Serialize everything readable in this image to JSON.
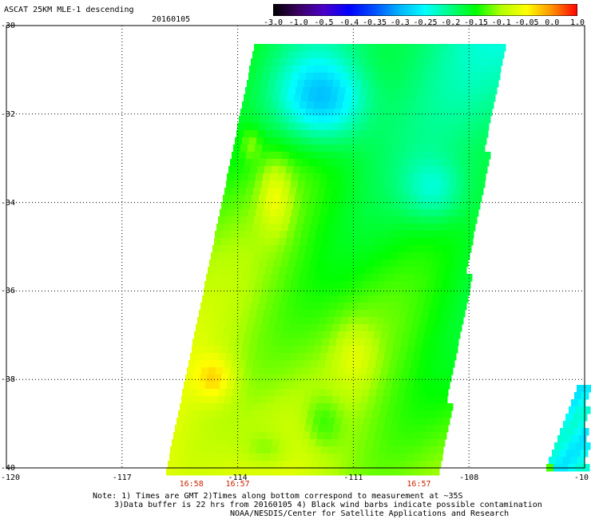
{
  "header": {
    "title": "ASCAT 25KM MLE-1 descending",
    "date": "20160105"
  },
  "colorbar": {
    "labels": [
      "-3.0",
      "-1.0",
      "-0.5",
      "-0.4",
      "-0.35",
      "-0.3",
      "-0.25",
      "-0.2",
      "-0.15",
      "-0.1",
      "-0.05",
      "0.0",
      "1.0"
    ],
    "colors": [
      "#000000",
      "#3a0060",
      "#4a00c8",
      "#0000ff",
      "#0050ff",
      "#00b4ff",
      "#00ffff",
      "#00ff80",
      "#00ff00",
      "#b4ff00",
      "#ffff00",
      "#ff9000",
      "#ff0000"
    ]
  },
  "axes": {
    "lat_labels": [
      "-30",
      "-32",
      "-34",
      "-36",
      "-38",
      "-40"
    ],
    "lon_labels": [
      "-120",
      "-117",
      "-114",
      "-111",
      "-108",
      "-10"
    ],
    "time_labels": [
      "16:58",
      "16:57",
      "16:57"
    ]
  },
  "chart_data": {
    "type": "heatmap",
    "title": "ASCAT 25KM MLE-1 descending",
    "xlabel": "",
    "ylabel": "",
    "xlim": [
      -120,
      -105
    ],
    "ylim": [
      -40,
      -30
    ],
    "grid": true,
    "legend": "top-right colorbar",
    "colorbar_range": [
      -3.0,
      1.0
    ]
  },
  "notes": [
    "Note: 1) Times are GMT 2)Times along bottom correspond to measurement at ~35S",
    "3)Data buffer is 22 hrs from 20160105 4) Black wind barbs indicate possible contamination",
    "NOAA/NESDIS/Center for Satellite Applications and Research"
  ]
}
